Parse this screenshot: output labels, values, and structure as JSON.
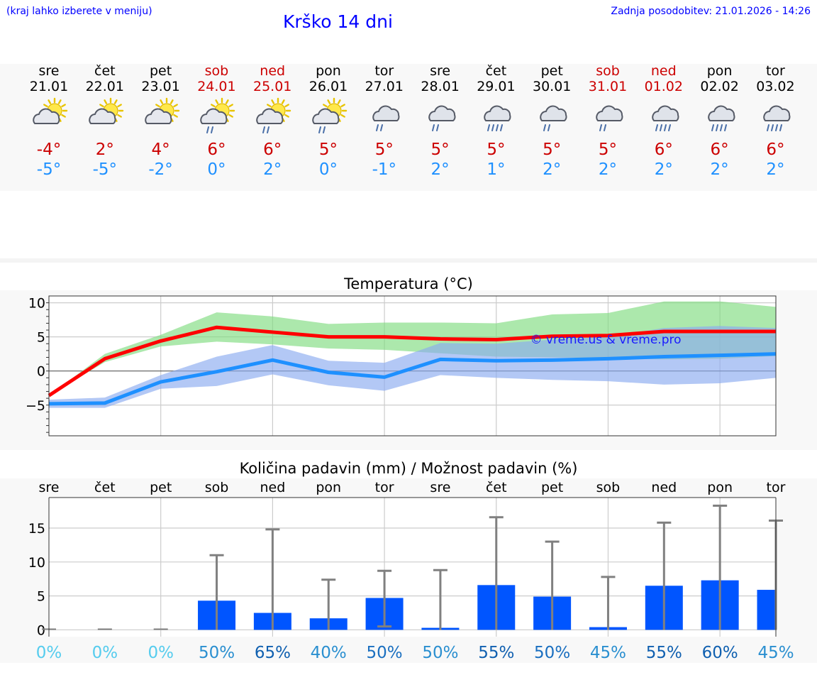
{
  "header": {
    "hint": "(kraj lahko izberete v meniju)",
    "title": "Krško 14 dni",
    "updated": "Zadnja posodobitev: 21.01.2026 - 14:26"
  },
  "days": [
    {
      "name": "sre",
      "date": "21.01",
      "weekend": false,
      "icon": "sun-cloud-icon",
      "tmax": "-4°",
      "tmin": "-5°"
    },
    {
      "name": "čet",
      "date": "22.01",
      "weekend": false,
      "icon": "sun-cloud-icon",
      "tmax": "2°",
      "tmin": "-5°"
    },
    {
      "name": "pet",
      "date": "23.01",
      "weekend": false,
      "icon": "sun-cloud-icon",
      "tmax": "4°",
      "tmin": "-2°"
    },
    {
      "name": "sob",
      "date": "24.01",
      "weekend": true,
      "icon": "sun-cloud-rain-icon",
      "tmax": "6°",
      "tmin": "0°"
    },
    {
      "name": "ned",
      "date": "25.01",
      "weekend": true,
      "icon": "sun-cloud-rain-icon",
      "tmax": "6°",
      "tmin": "2°"
    },
    {
      "name": "pon",
      "date": "26.01",
      "weekend": false,
      "icon": "sun-cloud-rain-icon",
      "tmax": "5°",
      "tmin": "0°"
    },
    {
      "name": "tor",
      "date": "27.01",
      "weekend": false,
      "icon": "cloud-rain-icon",
      "tmax": "5°",
      "tmin": "-1°"
    },
    {
      "name": "sre",
      "date": "28.01",
      "weekend": false,
      "icon": "cloud-rain-icon",
      "tmax": "5°",
      "tmin": "2°"
    },
    {
      "name": "čet",
      "date": "29.01",
      "weekend": false,
      "icon": "cloud-heavy-rain-icon",
      "tmax": "5°",
      "tmin": "1°"
    },
    {
      "name": "pet",
      "date": "30.01",
      "weekend": false,
      "icon": "cloud-rain-icon",
      "tmax": "5°",
      "tmin": "2°"
    },
    {
      "name": "sob",
      "date": "31.01",
      "weekend": true,
      "icon": "cloud-rain-icon",
      "tmax": "5°",
      "tmin": "2°"
    },
    {
      "name": "ned",
      "date": "01.02",
      "weekend": true,
      "icon": "cloud-heavy-rain-icon",
      "tmax": "6°",
      "tmin": "2°"
    },
    {
      "name": "pon",
      "date": "02.02",
      "weekend": false,
      "icon": "cloud-heavy-rain-icon",
      "tmax": "6°",
      "tmin": "2°"
    },
    {
      "name": "tor",
      "date": "03.02",
      "weekend": false,
      "icon": "cloud-heavy-rain-icon",
      "tmax": "6°",
      "tmin": "2°"
    }
  ],
  "colors": {
    "max": "#ff0000",
    "min": "#1e90ff",
    "max_band": "#7fdb7f",
    "min_band": "#8aaaf0",
    "bar": "#0055ff",
    "error": "#808080",
    "title": "#0000ff"
  },
  "chart_data": [
    {
      "type": "line",
      "title": "Temperatura (°C)",
      "watermark": "© vreme.us & vreme.pro",
      "ylim": [
        -9.5,
        11
      ],
      "yticks": [
        10,
        5,
        0,
        -5
      ],
      "ytick_labels": [
        "10",
        "5",
        "0",
        "−5"
      ],
      "x": [
        0,
        1,
        2,
        3,
        4,
        5,
        6,
        7,
        8,
        9,
        10,
        11,
        12,
        13
      ],
      "series": [
        {
          "name": "max",
          "values": [
            -3.6,
            1.8,
            4.4,
            6.4,
            5.7,
            5.0,
            5.0,
            4.7,
            4.6,
            5.1,
            5.2,
            5.8,
            5.8,
            5.8
          ]
        },
        {
          "name": "min",
          "values": [
            -4.8,
            -4.7,
            -1.6,
            -0.1,
            1.6,
            -0.2,
            -0.9,
            1.7,
            1.5,
            1.6,
            1.8,
            2.1,
            2.3,
            2.5
          ]
        }
      ],
      "max_band_low": [
        -3.6,
        1.3,
        3.6,
        4.3,
        3.9,
        3.3,
        3.1,
        2.6,
        2.1,
        2.0,
        1.9,
        1.7,
        1.8,
        2.2
      ],
      "max_band_high": [
        -3.6,
        2.5,
        5.3,
        8.6,
        8.0,
        6.9,
        7.1,
        7.1,
        7.0,
        8.3,
        8.5,
        10.2,
        10.2,
        9.4
      ],
      "min_band_low": [
        -5.4,
        -5.4,
        -2.6,
        -2.2,
        -0.5,
        -2.1,
        -2.9,
        -0.6,
        -1.0,
        -1.3,
        -1.5,
        -2.0,
        -1.8,
        -1.0
      ],
      "min_band_high": [
        -4.2,
        -3.9,
        -0.6,
        2.1,
        3.8,
        1.5,
        1.2,
        4.1,
        4.0,
        4.6,
        5.0,
        6.3,
        6.6,
        6.3
      ]
    },
    {
      "type": "bar",
      "title": "Količina padavin (mm) / Možnost padavin (%)",
      "categories": [
        "sre",
        "čet",
        "pet",
        "sob",
        "ned",
        "pon",
        "tor",
        "sre",
        "čet",
        "pet",
        "sob",
        "ned",
        "pon",
        "tor"
      ],
      "ylim": [
        -1,
        19.5
      ],
      "yticks": [
        15,
        10,
        5,
        0
      ],
      "ytick_labels": [
        "15",
        "10",
        "5",
        "0"
      ],
      "values": [
        0,
        0,
        0,
        4.3,
        2.5,
        1.7,
        4.7,
        0.3,
        6.6,
        4.9,
        0.4,
        6.5,
        7.3,
        5.9
      ],
      "error_low": [
        0,
        0,
        0,
        0,
        0,
        0,
        0.5,
        0,
        0,
        0,
        0,
        0,
        0,
        0
      ],
      "error_high": [
        0,
        0,
        0,
        11.0,
        14.8,
        7.4,
        8.7,
        8.8,
        16.6,
        13.0,
        7.8,
        15.8,
        18.3,
        16.1
      ],
      "probabilities": [
        "0%",
        "0%",
        "0%",
        "50%",
        "65%",
        "40%",
        "50%",
        "50%",
        "55%",
        "50%",
        "45%",
        "55%",
        "60%",
        "45%"
      ],
      "prob_colors": [
        "#55ccee",
        "#55ccee",
        "#55ccee",
        "#2a8fd0",
        "#1060b0",
        "#2a8fd0",
        "#1a6fc0",
        "#2a8fd0",
        "#1060b0",
        "#1a6fc0",
        "#2a8fd0",
        "#1060b0",
        "#1060b0",
        "#2a8fd0"
      ]
    }
  ]
}
